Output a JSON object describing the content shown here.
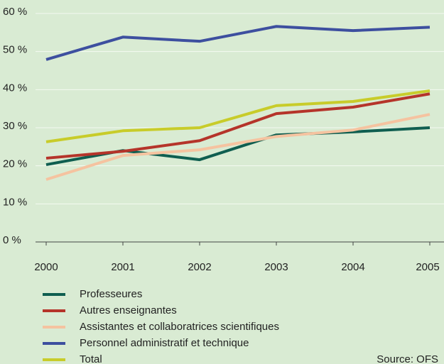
{
  "chart_data": {
    "type": "line",
    "x": [
      2000,
      2001,
      2002,
      2003,
      2004,
      2005
    ],
    "xlim": [
      2000,
      2005
    ],
    "xticks": [
      2000,
      2001,
      2002,
      2003,
      2004,
      2005
    ],
    "ylim": [
      0,
      60
    ],
    "yticks": [
      {
        "value": 0,
        "label": "0 %"
      },
      {
        "value": 10,
        "label": "10 %"
      },
      {
        "value": 20,
        "label": "20 %"
      },
      {
        "value": 30,
        "label": "30 %"
      },
      {
        "value": 40,
        "label": "40 %"
      },
      {
        "value": 50,
        "label": "50 %"
      },
      {
        "value": 60,
        "label": "60 %"
      }
    ],
    "grid": true,
    "series": [
      {
        "name": "Professeures",
        "color": "#0f5e50",
        "values": [
          20.3,
          24.0,
          21.6,
          28.1,
          28.9,
          30.0
        ]
      },
      {
        "name": "Autres enseignantes",
        "color": "#b5342a",
        "values": [
          22.0,
          23.8,
          26.6,
          33.7,
          35.4,
          38.9
        ]
      },
      {
        "name": "Assistantes et collaboratrices scientifiques",
        "color": "#f5c3a0",
        "values": [
          16.4,
          22.7,
          24.2,
          27.7,
          29.4,
          33.5
        ]
      },
      {
        "name": "Personnel administratif et technique",
        "color": "#3d4f9f",
        "values": [
          47.9,
          53.8,
          52.7,
          56.6,
          55.5,
          56.4
        ]
      },
      {
        "name": "Total",
        "color": "#c8cc2a",
        "values": [
          26.3,
          29.2,
          30.0,
          35.8,
          36.9,
          39.7
        ]
      }
    ],
    "annotation": "Source: OFS"
  }
}
